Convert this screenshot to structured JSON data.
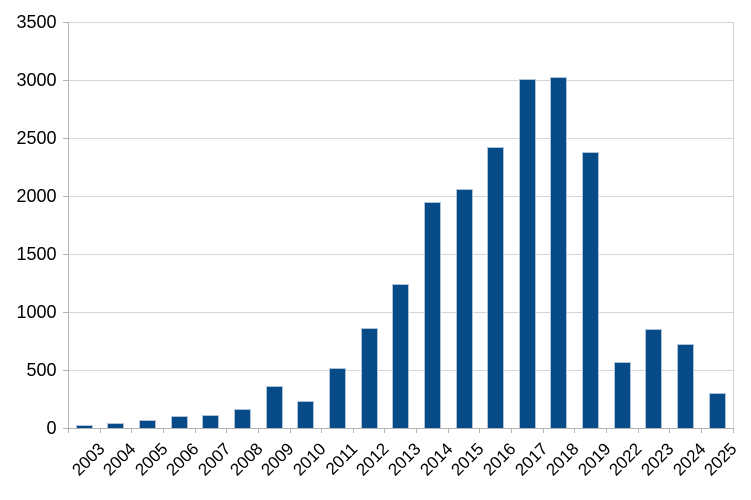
{
  "chart_data": {
    "type": "bar",
    "title": "",
    "xlabel": "",
    "ylabel": "",
    "categories": [
      "2003",
      "2004",
      "2005",
      "2006",
      "2007",
      "2008",
      "2009",
      "2010",
      "2011",
      "2012",
      "2013",
      "2014",
      "2015",
      "2016",
      "2017",
      "2018",
      "2019",
      "2022",
      "2023",
      "2024",
      "2025"
    ],
    "values": [
      25,
      45,
      65,
      100,
      115,
      160,
      360,
      230,
      520,
      860,
      1245,
      1950,
      2060,
      2420,
      3005,
      3025,
      2380,
      570,
      855,
      725,
      305
    ],
    "ylim": [
      0,
      3500
    ],
    "ytick_interval": 500,
    "yticks": [
      0,
      500,
      1000,
      1500,
      2000,
      2500,
      3000,
      3500
    ],
    "grid": true,
    "legend": "none",
    "x_label_rotation": -45,
    "colors": {
      "bar_fill": "#064a87",
      "bar_border": "#aec3d8",
      "gridline": "#d6d6d6",
      "axis": "#b3b3b3",
      "label": "#000000",
      "background": "#ffffff"
    }
  }
}
